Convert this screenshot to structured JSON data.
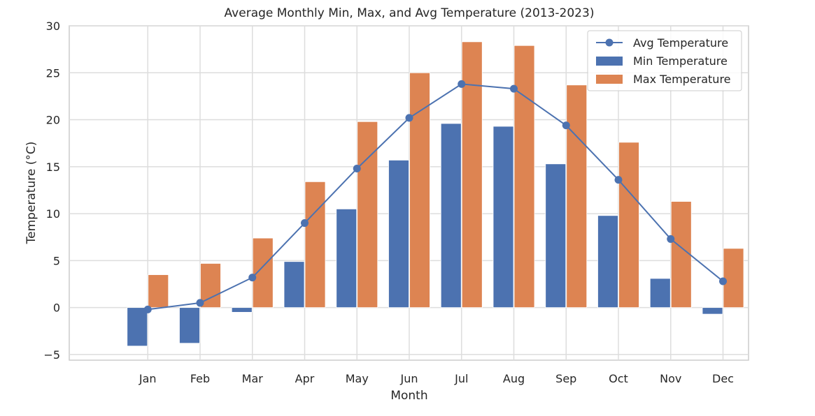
{
  "chart_data": {
    "type": "bar",
    "title": "Average Monthly Min, Max, and Avg Temperature (2013-2023)",
    "xlabel": "Month",
    "ylabel": "Temperature (°C)",
    "categories": [
      "Jan",
      "Feb",
      "Mar",
      "Apr",
      "May",
      "Jun",
      "Jul",
      "Aug",
      "Sep",
      "Oct",
      "Nov",
      "Dec"
    ],
    "ylim": [
      -5.6,
      30
    ],
    "yticks": [
      -5,
      0,
      5,
      10,
      15,
      20,
      25,
      30
    ],
    "grid": true,
    "legend_position": "top-right",
    "series": [
      {
        "name": "Min Temperature",
        "type": "bar",
        "color": "#4c72b0",
        "values": [
          -4.1,
          -3.8,
          -0.5,
          4.9,
          10.5,
          15.7,
          19.6,
          19.3,
          15.3,
          9.8,
          3.1,
          -0.7
        ]
      },
      {
        "name": "Max Temperature",
        "type": "bar",
        "color": "#dd8452",
        "values": [
          3.5,
          4.7,
          7.4,
          13.4,
          19.8,
          25.0,
          28.3,
          27.9,
          23.7,
          17.6,
          11.3,
          6.3
        ]
      },
      {
        "name": "Avg Temperature",
        "type": "line",
        "color": "#4c72b0",
        "values": [
          -0.2,
          0.5,
          3.2,
          9.0,
          14.8,
          20.2,
          23.8,
          23.3,
          19.4,
          13.6,
          7.3,
          2.8
        ]
      }
    ]
  }
}
